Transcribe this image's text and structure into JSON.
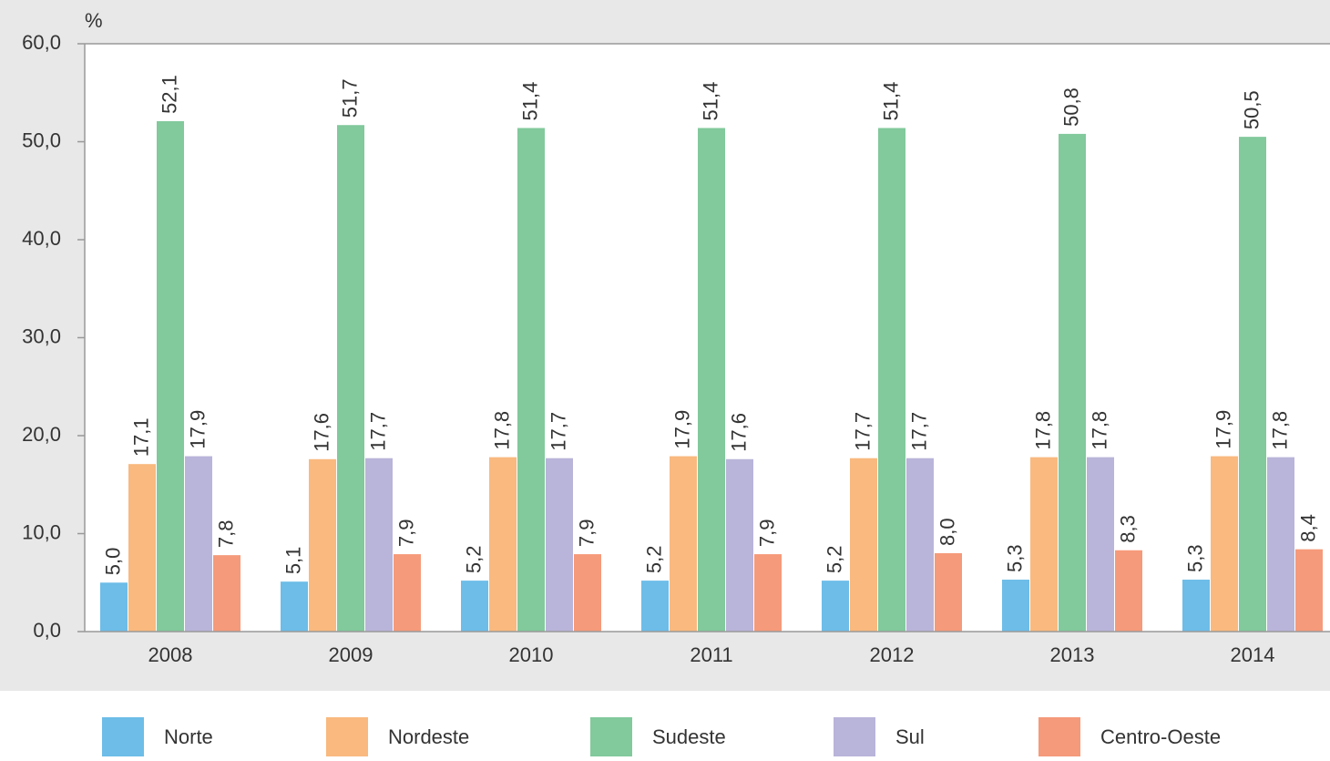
{
  "chart_data": {
    "type": "bar",
    "y_label": "%",
    "categories": [
      "2008",
      "2009",
      "2010",
      "2011",
      "2012",
      "2013",
      "2014"
    ],
    "series": [
      {
        "name": "Norte",
        "color": "#6dbde8",
        "values": [
          5.0,
          5.1,
          5.2,
          5.2,
          5.2,
          5.3,
          5.3
        ],
        "value_labels": [
          "5,0",
          "5,1",
          "5,2",
          "5,2",
          "5,2",
          "5,3",
          "5,3"
        ]
      },
      {
        "name": "Nordeste",
        "color": "#f9b97f",
        "values": [
          17.1,
          17.6,
          17.8,
          17.9,
          17.7,
          17.8,
          17.9
        ],
        "value_labels": [
          "17,1",
          "17,6",
          "17,8",
          "17,9",
          "17,7",
          "17,8",
          "17,9"
        ]
      },
      {
        "name": "Sudeste",
        "color": "#82c99c",
        "values": [
          52.1,
          51.7,
          51.4,
          51.4,
          51.4,
          50.8,
          50.5
        ],
        "value_labels": [
          "52,1",
          "51,7",
          "51,4",
          "51,4",
          "51,4",
          "50,8",
          "50,5"
        ]
      },
      {
        "name": "Sul",
        "color": "#b9b4d9",
        "values": [
          17.9,
          17.7,
          17.7,
          17.6,
          17.7,
          17.8,
          17.8
        ],
        "value_labels": [
          "17,9",
          "17,7",
          "17,7",
          "17,6",
          "17,7",
          "17,8",
          "17,8"
        ]
      },
      {
        "name": "Centro-Oeste",
        "color": "#f59a7a",
        "values": [
          7.8,
          7.9,
          7.9,
          7.9,
          8.0,
          8.3,
          8.4
        ],
        "value_labels": [
          "7,8",
          "7,9",
          "7,9",
          "7,9",
          "8,0",
          "8,3",
          "8,4"
        ]
      }
    ],
    "ylim": [
      0,
      60
    ],
    "yticks": [
      {
        "value": 0,
        "label": "0,0"
      },
      {
        "value": 10,
        "label": "10,0"
      },
      {
        "value": 20,
        "label": "20,0"
      },
      {
        "value": 30,
        "label": "30,0"
      },
      {
        "value": 40,
        "label": "40,0"
      },
      {
        "value": 50,
        "label": "50,0"
      },
      {
        "value": 60,
        "label": "60,0"
      }
    ],
    "legend": "bottom"
  }
}
